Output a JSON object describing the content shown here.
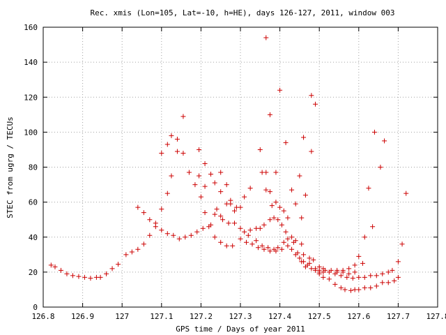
{
  "chart_data": {
    "type": "scatter",
    "title": "Rec. xmis (Lon=105, Lat=-10, h=HE), days 126-127, 2011, window 003",
    "xlabel": "GPS time / Days of year 2011",
    "ylabel": "STEC from ugrg / TECUs",
    "xlim": [
      126.8,
      127.8
    ],
    "ylim": [
      0,
      160
    ],
    "x_ticks": [
      126.8,
      126.9,
      127.0,
      127.1,
      127.2,
      127.3,
      127.4,
      127.5,
      127.6,
      127.7,
      127.8
    ],
    "x_tick_labels": [
      "126.8",
      "126.9",
      "127",
      "127.1",
      "127.2",
      "127.3",
      "127.4",
      "127.5",
      "127.6",
      "127.7",
      "127.8"
    ],
    "y_ticks": [
      0,
      20,
      40,
      60,
      80,
      100,
      120,
      140,
      160
    ],
    "y_tick_labels": [
      "0",
      "20",
      "40",
      "60",
      "80",
      "100",
      "120",
      "140",
      "160"
    ],
    "grid": true,
    "marker": "+",
    "marker_color": "#cc0000",
    "points": [
      [
        126.82,
        24
      ],
      [
        126.83,
        23
      ],
      [
        126.845,
        21
      ],
      [
        126.86,
        19
      ],
      [
        126.875,
        18
      ],
      [
        126.89,
        17.5
      ],
      [
        126.905,
        17
      ],
      [
        126.92,
        16.5
      ],
      [
        126.935,
        17
      ],
      [
        126.945,
        17
      ],
      [
        126.96,
        19
      ],
      [
        126.975,
        22
      ],
      [
        126.99,
        24.5
      ],
      [
        127.01,
        30
      ],
      [
        127.025,
        31.5
      ],
      [
        127.04,
        33
      ],
      [
        127.055,
        36
      ],
      [
        127.07,
        41
      ],
      [
        127.085,
        46
      ],
      [
        127.1,
        44
      ],
      [
        127.115,
        42
      ],
      [
        127.13,
        41
      ],
      [
        127.145,
        39
      ],
      [
        127.16,
        40
      ],
      [
        127.175,
        41
      ],
      [
        127.19,
        43
      ],
      [
        127.205,
        45
      ],
      [
        127.22,
        46
      ],
      [
        127.04,
        57
      ],
      [
        127.055,
        54
      ],
      [
        127.07,
        50
      ],
      [
        127.085,
        48
      ],
      [
        127.1,
        56
      ],
      [
        127.115,
        65
      ],
      [
        127.1,
        88
      ],
      [
        127.115,
        93
      ],
      [
        127.125,
        98
      ],
      [
        127.125,
        75
      ],
      [
        127.14,
        96
      ],
      [
        127.14,
        89
      ],
      [
        127.155,
        109
      ],
      [
        127.155,
        88
      ],
      [
        127.17,
        77
      ],
      [
        127.185,
        70
      ],
      [
        127.195,
        90
      ],
      [
        127.195,
        75
      ],
      [
        127.21,
        82
      ],
      [
        127.21,
        69
      ],
      [
        127.225,
        76
      ],
      [
        127.235,
        71
      ],
      [
        127.25,
        77
      ],
      [
        127.25,
        66
      ],
      [
        127.265,
        70
      ],
      [
        127.275,
        61
      ],
      [
        127.2,
        63
      ],
      [
        127.21,
        54
      ],
      [
        127.225,
        47
      ],
      [
        127.24,
        56
      ],
      [
        127.25,
        52
      ],
      [
        127.265,
        59
      ],
      [
        127.275,
        59
      ],
      [
        127.285,
        55
      ],
      [
        127.29,
        57
      ],
      [
        127.3,
        57
      ],
      [
        127.235,
        40
      ],
      [
        127.25,
        37
      ],
      [
        127.265,
        35
      ],
      [
        127.28,
        35
      ],
      [
        127.235,
        53
      ],
      [
        127.255,
        50
      ],
      [
        127.27,
        48
      ],
      [
        127.285,
        48
      ],
      [
        127.3,
        45
      ],
      [
        127.31,
        43
      ],
      [
        127.32,
        41
      ],
      [
        127.3,
        39
      ],
      [
        127.315,
        37
      ],
      [
        127.33,
        36
      ],
      [
        127.345,
        34
      ],
      [
        127.36,
        33
      ],
      [
        127.375,
        32
      ],
      [
        127.39,
        32
      ],
      [
        127.405,
        33
      ],
      [
        127.42,
        35
      ],
      [
        127.435,
        37
      ],
      [
        127.31,
        63
      ],
      [
        127.325,
        68
      ],
      [
        127.325,
        44
      ],
      [
        127.34,
        45
      ],
      [
        127.35,
        90
      ],
      [
        127.355,
        77
      ],
      [
        127.365,
        154
      ],
      [
        127.365,
        77
      ],
      [
        127.365,
        67
      ],
      [
        127.375,
        66
      ],
      [
        127.375,
        110
      ],
      [
        127.38,
        58
      ],
      [
        127.39,
        77
      ],
      [
        127.39,
        60
      ],
      [
        127.4,
        124
      ],
      [
        127.4,
        57
      ],
      [
        127.41,
        55
      ],
      [
        127.415,
        94
      ],
      [
        127.42,
        51
      ],
      [
        127.43,
        67
      ],
      [
        127.44,
        59
      ],
      [
        127.45,
        75
      ],
      [
        127.46,
        97
      ],
      [
        127.465,
        64
      ],
      [
        127.48,
        121
      ],
      [
        127.48,
        89
      ],
      [
        127.49,
        116
      ],
      [
        127.35,
        45
      ],
      [
        127.36,
        47
      ],
      [
        127.375,
        50
      ],
      [
        127.385,
        51
      ],
      [
        127.395,
        50
      ],
      [
        127.405,
        47
      ],
      [
        127.415,
        43
      ],
      [
        127.43,
        40
      ],
      [
        127.44,
        38
      ],
      [
        127.455,
        36
      ],
      [
        127.455,
        51
      ],
      [
        127.34,
        38
      ],
      [
        127.355,
        35
      ],
      [
        127.37,
        34
      ],
      [
        127.385,
        33
      ],
      [
        127.395,
        34
      ],
      [
        127.41,
        37
      ],
      [
        127.42,
        39
      ],
      [
        127.43,
        33
      ],
      [
        127.44,
        30
      ],
      [
        127.45,
        28
      ],
      [
        127.46,
        26
      ],
      [
        127.47,
        24
      ],
      [
        127.48,
        22
      ],
      [
        127.49,
        21
      ],
      [
        127.5,
        20
      ],
      [
        127.51,
        20
      ],
      [
        127.445,
        31
      ],
      [
        127.455,
        26
      ],
      [
        127.465,
        23
      ],
      [
        127.475,
        25
      ],
      [
        127.49,
        22
      ],
      [
        127.5,
        19
      ],
      [
        127.51,
        17
      ],
      [
        127.525,
        16
      ],
      [
        127.54,
        13
      ],
      [
        127.555,
        11
      ],
      [
        127.565,
        10
      ],
      [
        127.58,
        9.5
      ],
      [
        127.59,
        10
      ],
      [
        127.6,
        10
      ],
      [
        127.615,
        11
      ],
      [
        127.63,
        11
      ],
      [
        127.645,
        12
      ],
      [
        127.66,
        14
      ],
      [
        127.675,
        14
      ],
      [
        127.69,
        15
      ],
      [
        127.7,
        17
      ],
      [
        127.46,
        30
      ],
      [
        127.475,
        28
      ],
      [
        127.485,
        27
      ],
      [
        127.5,
        23
      ],
      [
        127.51,
        22
      ],
      [
        127.525,
        20
      ],
      [
        127.54,
        19
      ],
      [
        127.555,
        18
      ],
      [
        127.57,
        17
      ],
      [
        127.585,
        16.5
      ],
      [
        127.6,
        17
      ],
      [
        127.615,
        17
      ],
      [
        127.63,
        18
      ],
      [
        127.645,
        18
      ],
      [
        127.66,
        19
      ],
      [
        127.675,
        20
      ],
      [
        127.685,
        21
      ],
      [
        127.7,
        26
      ],
      [
        127.71,
        36
      ],
      [
        127.72,
        65
      ],
      [
        127.5,
        21
      ],
      [
        127.515,
        21
      ],
      [
        127.53,
        21
      ],
      [
        127.545,
        21
      ],
      [
        127.56,
        21
      ],
      [
        127.575,
        22
      ],
      [
        127.59,
        24
      ],
      [
        127.6,
        29
      ],
      [
        127.61,
        25
      ],
      [
        127.615,
        40
      ],
      [
        127.625,
        68
      ],
      [
        127.635,
        46
      ],
      [
        127.64,
        100
      ],
      [
        127.655,
        80
      ],
      [
        127.665,
        95
      ],
      [
        127.545,
        20
      ],
      [
        127.56,
        20
      ],
      [
        127.575,
        19
      ],
      [
        127.59,
        20
      ]
    ]
  }
}
